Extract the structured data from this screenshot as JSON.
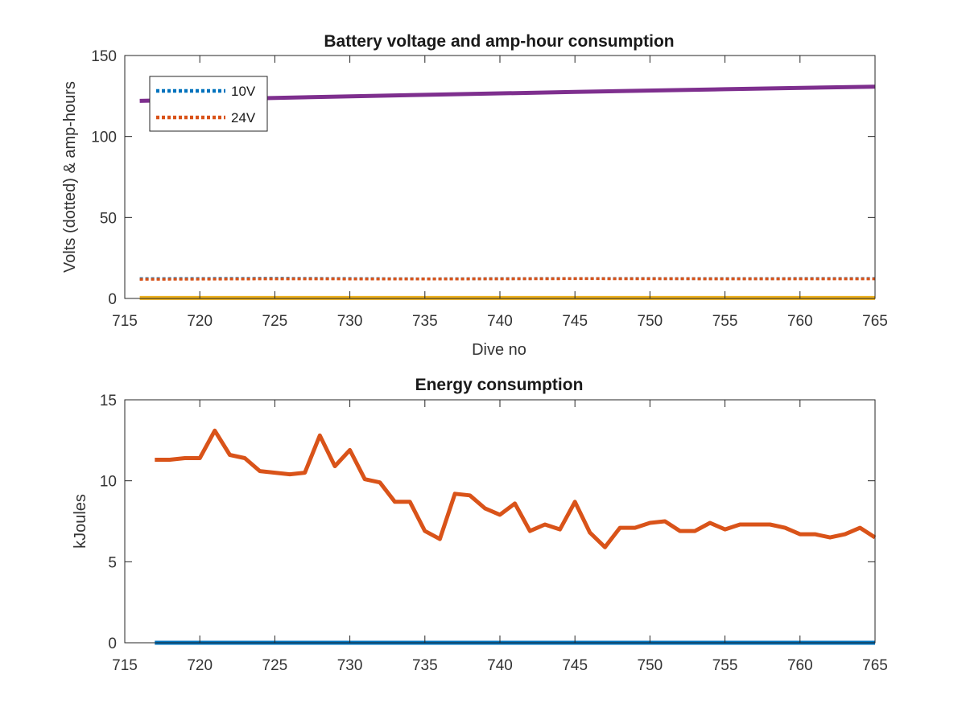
{
  "chart_data": [
    {
      "type": "line",
      "title": "Battery voltage and amp-hour consumption",
      "xlabel": "Dive no",
      "ylabel": "Volts (dotted) & amp-hours",
      "xlim": [
        715,
        765
      ],
      "ylim": [
        0,
        150
      ],
      "xticks": [
        715,
        720,
        725,
        730,
        735,
        740,
        745,
        750,
        755,
        760,
        765
      ],
      "yticks": [
        0,
        50,
        100,
        150
      ],
      "grid": false,
      "legend_position": "top-left",
      "series": [
        {
          "name": "10V",
          "color": "#0072BD",
          "style": "dotted",
          "x": [
            716,
            725,
            735,
            745,
            755,
            765
          ],
          "y": [
            12.2,
            12.4,
            12.1,
            12.3,
            12.2,
            12.3
          ]
        },
        {
          "name": "24V",
          "color": "#D95319",
          "style": "dotted",
          "x": [
            716,
            725,
            735,
            745,
            755,
            765
          ],
          "y": [
            11.8,
            12.1,
            12.0,
            12.2,
            12.1,
            12.1
          ]
        },
        {
          "color": "#EDB120",
          "style": "solid",
          "x": [
            716,
            765
          ],
          "y": [
            0.3,
            0.3
          ]
        },
        {
          "color": "#7E2F8E",
          "style": "solid",
          "x": [
            716,
            725,
            735,
            745,
            755,
            765
          ],
          "y": [
            122,
            123.8,
            125.7,
            127.5,
            129.2,
            130.8
          ]
        }
      ]
    },
    {
      "type": "line",
      "title": "Energy consumption",
      "xlabel": "",
      "ylabel": "kJoules",
      "xlim": [
        715,
        765
      ],
      "ylim": [
        0,
        15
      ],
      "xticks": [
        715,
        720,
        725,
        730,
        735,
        740,
        745,
        750,
        755,
        760,
        765
      ],
      "yticks": [
        0,
        5,
        10,
        15
      ],
      "grid": false,
      "series": [
        {
          "color": "#0072BD",
          "style": "solid",
          "x": [
            717,
            765
          ],
          "y": [
            0,
            0
          ]
        },
        {
          "color": "#D95319",
          "style": "solid",
          "x": [
            717,
            718,
            719,
            720,
            721,
            722,
            723,
            724,
            725,
            726,
            727,
            728,
            729,
            730,
            731,
            732,
            733,
            734,
            735,
            736,
            737,
            738,
            739,
            740,
            741,
            742,
            743,
            744,
            745,
            746,
            747,
            748,
            749,
            750,
            751,
            752,
            753,
            754,
            755,
            756,
            757,
            758,
            759,
            760,
            761,
            762,
            763,
            764,
            765
          ],
          "y": [
            11.3,
            11.3,
            11.4,
            11.4,
            13.1,
            11.6,
            11.4,
            10.6,
            10.5,
            10.4,
            10.5,
            12.8,
            10.9,
            11.9,
            10.1,
            9.9,
            8.7,
            8.7,
            6.9,
            6.4,
            9.2,
            9.1,
            8.3,
            7.9,
            8.6,
            6.9,
            7.3,
            7.0,
            8.7,
            6.8,
            5.9,
            7.1,
            7.1,
            7.4,
            7.5,
            6.9,
            6.9,
            7.4,
            7.0,
            7.3,
            7.3,
            7.3,
            7.1,
            6.7,
            6.7,
            6.5,
            6.7,
            7.1,
            6.5
          ]
        }
      ]
    }
  ]
}
